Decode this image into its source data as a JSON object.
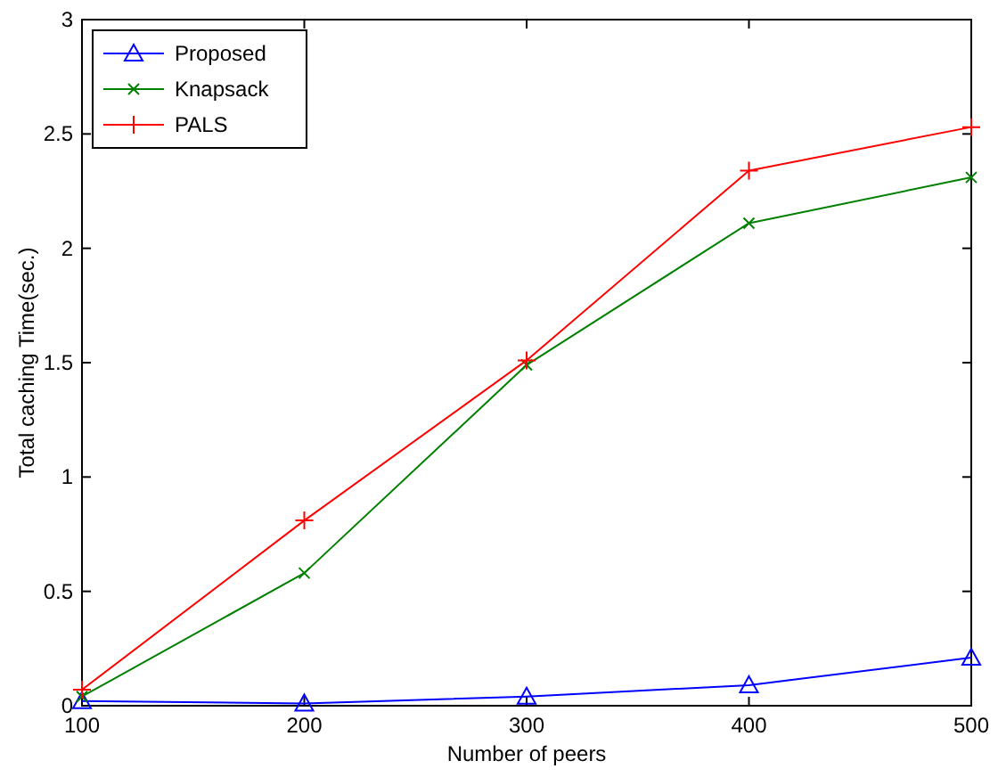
{
  "chart_data": {
    "type": "line",
    "xlabel": "Number of peers",
    "ylabel": "Total caching Time(sec.)",
    "x": [
      100,
      200,
      300,
      400,
      500
    ],
    "xlim": [
      100,
      500
    ],
    "xticks": [
      100,
      200,
      300,
      400,
      500
    ],
    "ylim": [
      0,
      3
    ],
    "yticks": [
      0,
      0.5,
      1,
      1.5,
      2,
      2.5,
      3
    ],
    "legend": "top left",
    "grid": false,
    "series": [
      {
        "name": "Proposed",
        "color": "#0000ff",
        "marker": "triangle",
        "values": [
          0.02,
          0.01,
          0.04,
          0.09,
          0.21
        ]
      },
      {
        "name": "Knapsack",
        "color": "#008000",
        "marker": "cross",
        "values": [
          0.04,
          0.58,
          1.49,
          2.11,
          2.31
        ]
      },
      {
        "name": "PALS",
        "color": "#ff0000",
        "marker": "plus",
        "values": [
          0.07,
          0.81,
          1.51,
          2.34,
          2.53
        ]
      }
    ]
  }
}
